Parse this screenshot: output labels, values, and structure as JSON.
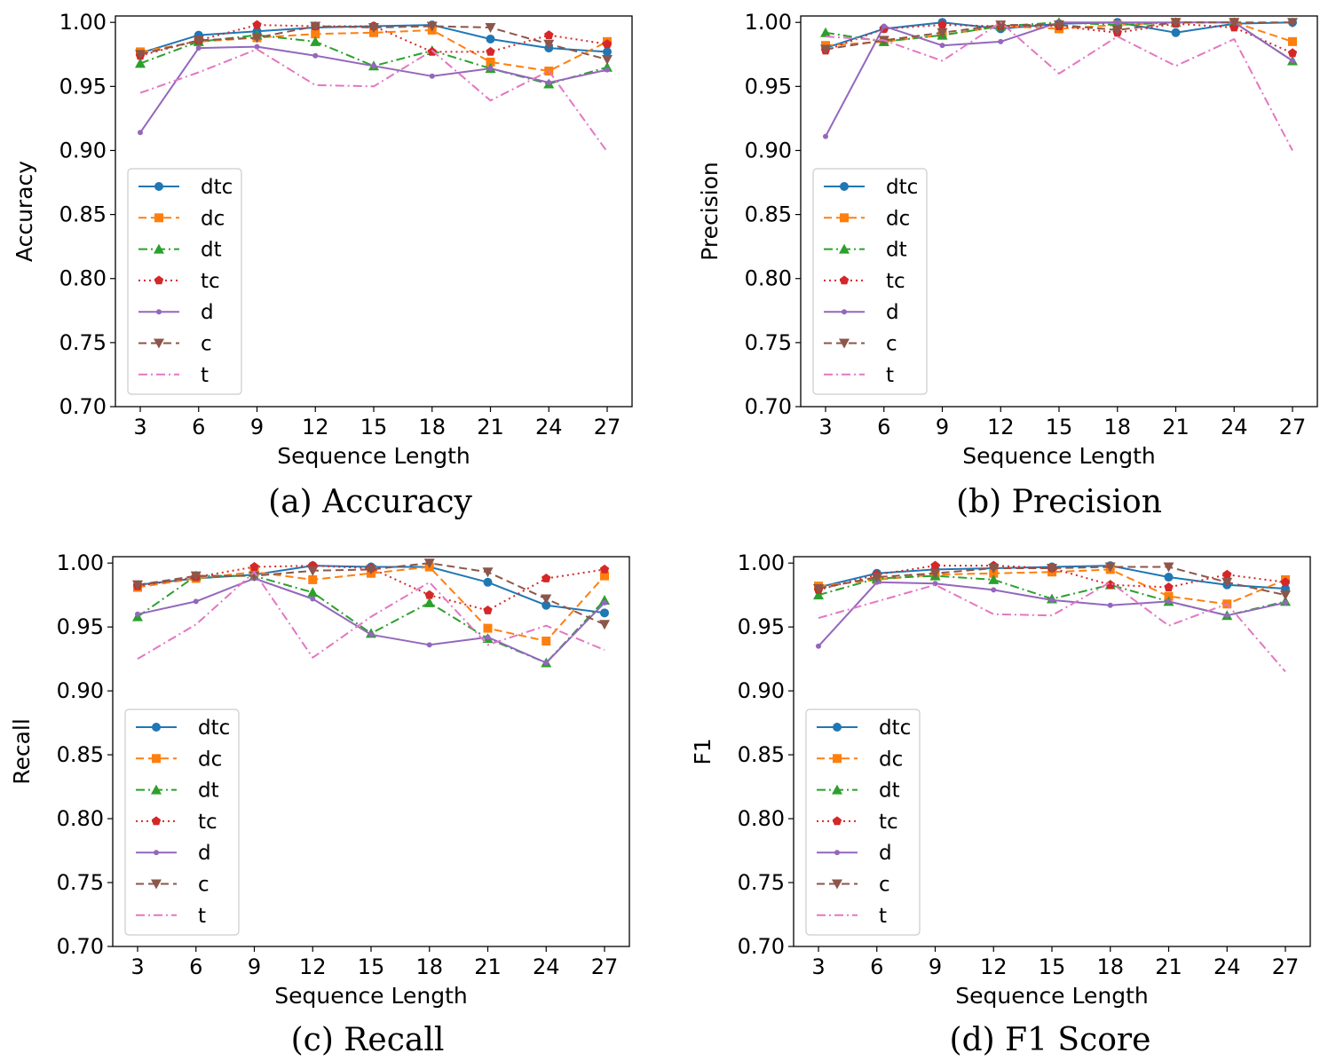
{
  "figure": {
    "captions": [
      "(a)  Accuracy",
      "(b)  Precision",
      "(c)  Recall",
      "(d)  F1 Score"
    ]
  },
  "chart_data": [
    {
      "type": "line",
      "title": "",
      "xlabel": "Sequence Length",
      "ylabel": "Accuracy",
      "ylim": [
        0.7,
        1.005
      ],
      "x": [
        3,
        6,
        9,
        12,
        15,
        18,
        21,
        24,
        27
      ],
      "yticks": [
        "0.70",
        "0.75",
        "0.80",
        "0.85",
        "0.90",
        "0.95",
        "1.00"
      ],
      "legend_position": "center-left",
      "series": [
        {
          "name": "dtc",
          "color": "#1f77b4",
          "marker": "circle",
          "dash": "solid",
          "values": [
            0.976,
            0.99,
            0.993,
            0.996,
            0.997,
            0.998,
            0.987,
            0.98,
            0.977
          ]
        },
        {
          "name": "dc",
          "color": "#ff7f0e",
          "marker": "square",
          "dash": "dashed",
          "values": [
            0.977,
            0.985,
            0.988,
            0.991,
            0.992,
            0.994,
            0.969,
            0.962,
            0.985
          ]
        },
        {
          "name": "dt",
          "color": "#2ca02c",
          "marker": "triangle-up",
          "dash": "dashdot",
          "values": [
            0.968,
            0.985,
            0.99,
            0.985,
            0.966,
            0.978,
            0.964,
            0.952,
            0.965
          ]
        },
        {
          "name": "tc",
          "color": "#d62728",
          "marker": "pentagon",
          "dash": "dotted",
          "values": [
            0.974,
            0.986,
            0.998,
            0.997,
            0.997,
            0.977,
            0.977,
            0.99,
            0.983
          ]
        },
        {
          "name": "d",
          "color": "#9467bd",
          "marker": "dot",
          "dash": "solid",
          "values": [
            0.914,
            0.98,
            0.981,
            0.974,
            0.966,
            0.958,
            0.964,
            0.953,
            0.963
          ]
        },
        {
          "name": "c",
          "color": "#8c564b",
          "marker": "triangle-down",
          "dash": "dashed",
          "values": [
            0.975,
            0.986,
            0.988,
            0.997,
            0.996,
            0.997,
            0.996,
            0.983,
            0.971
          ]
        },
        {
          "name": "t",
          "color": "#e377c2",
          "marker": "none",
          "dash": "dashdot",
          "values": [
            0.945,
            0.961,
            0.979,
            0.951,
            0.95,
            0.978,
            0.939,
            0.962,
            0.899
          ]
        }
      ]
    },
    {
      "type": "line",
      "title": "",
      "xlabel": "Sequence Length",
      "ylabel": "Precision",
      "ylim": [
        0.7,
        1.005
      ],
      "x": [
        3,
        6,
        9,
        12,
        15,
        18,
        21,
        24,
        27
      ],
      "yticks": [
        "0.70",
        "0.75",
        "0.80",
        "0.85",
        "0.90",
        "0.95",
        "1.00"
      ],
      "legend_position": "center-left",
      "series": [
        {
          "name": "dtc",
          "color": "#1f77b4",
          "marker": "circle",
          "dash": "solid",
          "values": [
            0.98,
            0.995,
            1.0,
            0.995,
            0.999,
            1.0,
            0.992,
            0.999,
            1.0
          ]
        },
        {
          "name": "dc",
          "color": "#ff7f0e",
          "marker": "square",
          "dash": "dashed",
          "values": [
            0.982,
            0.985,
            0.99,
            0.997,
            0.995,
            0.998,
            1.0,
            1.0,
            0.985
          ]
        },
        {
          "name": "dt",
          "color": "#2ca02c",
          "marker": "triangle-up",
          "dash": "dashdot",
          "values": [
            0.992,
            0.985,
            0.99,
            0.997,
            1.0,
            0.998,
            1.0,
            1.0,
            0.97
          ]
        },
        {
          "name": "tc",
          "color": "#d62728",
          "marker": "pentagon",
          "dash": "dotted",
          "values": [
            0.978,
            0.995,
            0.998,
            0.997,
            0.997,
            0.992,
            0.999,
            0.996,
            0.976
          ]
        },
        {
          "name": "d",
          "color": "#9467bd",
          "marker": "dot",
          "dash": "solid",
          "values": [
            0.911,
            0.997,
            0.982,
            0.985,
            1.0,
            1.0,
            1.0,
            1.0,
            0.97
          ]
        },
        {
          "name": "c",
          "color": "#8c564b",
          "marker": "triangle-down",
          "dash": "dashed",
          "values": [
            0.979,
            0.986,
            0.992,
            0.998,
            0.998,
            0.994,
            1.0,
            1.0,
            1.0
          ]
        },
        {
          "name": "t",
          "color": "#e377c2",
          "marker": "none",
          "dash": "dashdot",
          "values": [
            0.989,
            0.986,
            0.97,
            1.0,
            0.96,
            0.989,
            0.966,
            0.987,
            0.9
          ]
        }
      ]
    },
    {
      "type": "line",
      "title": "",
      "xlabel": "Sequence Length",
      "ylabel": "Recall",
      "ylim": [
        0.7,
        1.005
      ],
      "x": [
        3,
        6,
        9,
        12,
        15,
        18,
        21,
        24,
        27
      ],
      "yticks": [
        "0.70",
        "0.75",
        "0.80",
        "0.85",
        "0.90",
        "0.95",
        "1.00"
      ],
      "legend_position": "center-left",
      "series": [
        {
          "name": "dtc",
          "color": "#1f77b4",
          "marker": "circle",
          "dash": "solid",
          "values": [
            0.983,
            0.988,
            0.991,
            0.998,
            0.997,
            0.997,
            0.985,
            0.967,
            0.961
          ]
        },
        {
          "name": "dc",
          "color": "#ff7f0e",
          "marker": "square",
          "dash": "dashed",
          "values": [
            0.981,
            0.988,
            0.993,
            0.987,
            0.992,
            0.997,
            0.949,
            0.939,
            0.99
          ]
        },
        {
          "name": "dt",
          "color": "#2ca02c",
          "marker": "triangle-up",
          "dash": "dashdot",
          "values": [
            0.958,
            0.99,
            0.99,
            0.977,
            0.945,
            0.969,
            0.941,
            0.922,
            0.971
          ]
        },
        {
          "name": "tc",
          "color": "#d62728",
          "marker": "pentagon",
          "dash": "dotted",
          "values": [
            0.982,
            0.989,
            0.997,
            0.998,
            0.996,
            0.975,
            0.963,
            0.988,
            0.995
          ]
        },
        {
          "name": "d",
          "color": "#9467bd",
          "marker": "dot",
          "dash": "solid",
          "values": [
            0.96,
            0.97,
            0.988,
            0.972,
            0.944,
            0.936,
            0.942,
            0.922,
            0.969
          ]
        },
        {
          "name": "c",
          "color": "#8c564b",
          "marker": "triangle-down",
          "dash": "dashed",
          "values": [
            0.983,
            0.99,
            0.99,
            0.994,
            0.995,
            1.0,
            0.993,
            0.972,
            0.952
          ]
        },
        {
          "name": "t",
          "color": "#e377c2",
          "marker": "none",
          "dash": "dashdot",
          "values": [
            0.925,
            0.952,
            0.993,
            0.926,
            0.958,
            0.985,
            0.936,
            0.951,
            0.932
          ]
        }
      ]
    },
    {
      "type": "line",
      "title": "",
      "xlabel": "Sequence Length",
      "ylabel": "F1",
      "ylim": [
        0.7,
        1.005
      ],
      "x": [
        3,
        6,
        9,
        12,
        15,
        18,
        21,
        24,
        27
      ],
      "yticks": [
        "0.70",
        "0.75",
        "0.80",
        "0.85",
        "0.90",
        "0.95",
        "1.00"
      ],
      "legend_position": "center-left",
      "series": [
        {
          "name": "dtc",
          "color": "#1f77b4",
          "marker": "circle",
          "dash": "solid",
          "values": [
            0.981,
            0.992,
            0.995,
            0.996,
            0.997,
            0.998,
            0.989,
            0.983,
            0.98
          ]
        },
        {
          "name": "dc",
          "color": "#ff7f0e",
          "marker": "square",
          "dash": "dashed",
          "values": [
            0.982,
            0.987,
            0.991,
            0.992,
            0.993,
            0.995,
            0.974,
            0.968,
            0.987
          ]
        },
        {
          "name": "dt",
          "color": "#2ca02c",
          "marker": "triangle-up",
          "dash": "dashdot",
          "values": [
            0.975,
            0.988,
            0.99,
            0.987,
            0.972,
            0.983,
            0.97,
            0.959,
            0.97
          ]
        },
        {
          "name": "tc",
          "color": "#d62728",
          "marker": "pentagon",
          "dash": "dotted",
          "values": [
            0.979,
            0.991,
            0.998,
            0.998,
            0.996,
            0.983,
            0.981,
            0.991,
            0.985
          ]
        },
        {
          "name": "d",
          "color": "#9467bd",
          "marker": "dot",
          "dash": "solid",
          "values": [
            0.935,
            0.985,
            0.984,
            0.979,
            0.971,
            0.967,
            0.97,
            0.959,
            0.969
          ]
        },
        {
          "name": "c",
          "color": "#8c564b",
          "marker": "triangle-down",
          "dash": "dashed",
          "values": [
            0.98,
            0.989,
            0.992,
            0.996,
            0.996,
            0.997,
            0.997,
            0.985,
            0.975
          ]
        },
        {
          "name": "t",
          "color": "#e377c2",
          "marker": "none",
          "dash": "dashdot",
          "values": [
            0.957,
            0.97,
            0.983,
            0.96,
            0.959,
            0.985,
            0.951,
            0.968,
            0.915
          ]
        }
      ]
    }
  ]
}
